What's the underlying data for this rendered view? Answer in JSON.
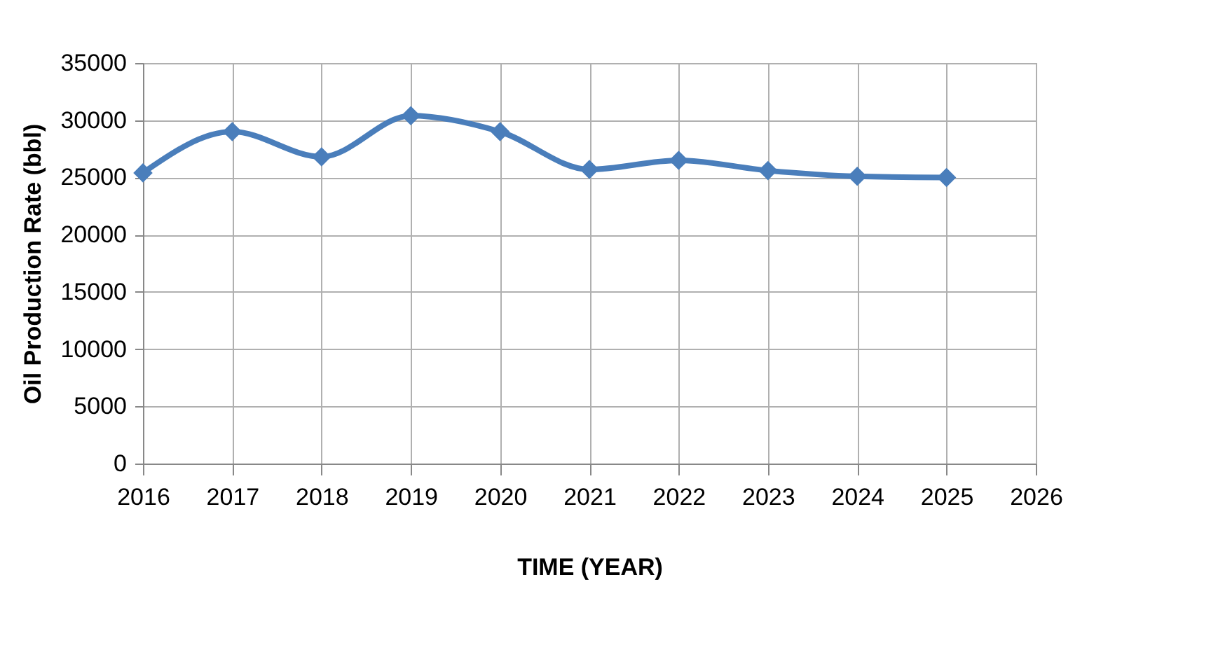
{
  "chart_data": {
    "type": "line",
    "xlabel": "TIME (YEAR)",
    "ylabel": "Oil Production Rate (bbl)",
    "x": [
      2016,
      2017,
      2018,
      2019,
      2020,
      2021,
      2022,
      2023,
      2024,
      2025
    ],
    "series": [
      {
        "color": "#4a7ebb",
        "values": [
          25400,
          29000,
          26800,
          30400,
          29000,
          25700,
          26500,
          25600,
          25100,
          25000
        ]
      }
    ],
    "xlim": [
      2016,
      2026
    ],
    "xticks": [
      2016,
      2017,
      2018,
      2019,
      2020,
      2021,
      2022,
      2023,
      2024,
      2025,
      2026
    ],
    "ylim": [
      0,
      35000
    ],
    "yticks": [
      0,
      5000,
      10000,
      15000,
      20000,
      25000,
      30000,
      35000
    ],
    "grid": true,
    "marker": "diamond",
    "line_style": "solid",
    "legend": false
  }
}
